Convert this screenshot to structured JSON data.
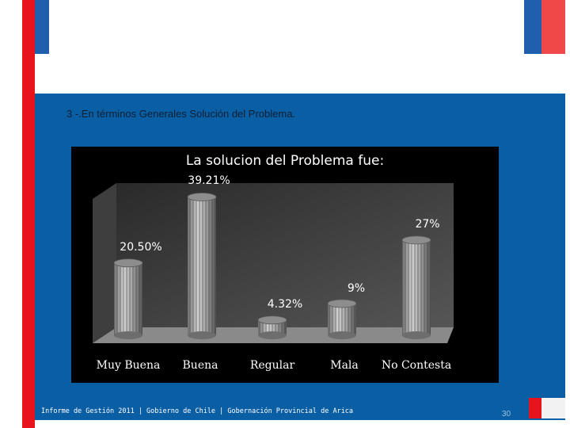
{
  "slide": {
    "subtitle": "3 -.En términos Generales Solución del Problema.",
    "footer": "Informe de Gestión 2011 | Gobierno de Chile | Gobernación Provincial de Arica",
    "page_number": "30"
  },
  "colors": {
    "panel": "#0a5ea4",
    "accent_red": "#e8141b",
    "chart_background": "#000000",
    "plot_wall": "#4a4a4a",
    "bar": "#b0b0b0"
  },
  "chart_data": {
    "type": "bar",
    "title": "La solucion del Problema fue:",
    "categories": [
      "Muy Buena",
      "Buena",
      "Regular",
      "Mala",
      "No Contesta"
    ],
    "values": [
      20.5,
      39.21,
      4.32,
      9,
      27
    ],
    "value_labels": [
      "20.50%",
      "39.21%",
      "4.32%",
      "9%",
      "27%"
    ],
    "ylim": [
      0,
      40
    ],
    "style": "3d-cylinder",
    "legend": "none",
    "grid": false
  }
}
